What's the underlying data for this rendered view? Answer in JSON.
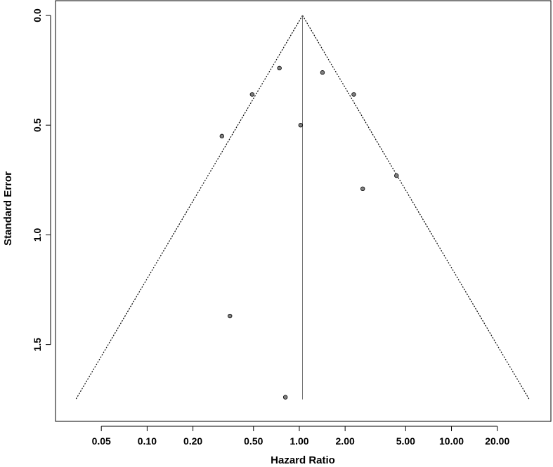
{
  "chart_data": {
    "type": "scatter",
    "title": "",
    "xlabel": "Hazard Ratio",
    "ylabel": "Standard Error",
    "x_scale": "log",
    "y_axis_inverted": true,
    "xlim": [
      0.025,
      45
    ],
    "ylim": [
      0,
      1.85
    ],
    "x_ticks": [
      0.05,
      0.1,
      0.2,
      0.5,
      1,
      2,
      5,
      10,
      20
    ],
    "x_tick_labels": [
      "0.05",
      "0.10",
      "0.20",
      "0.50",
      "1.00",
      "2.00",
      "5.00",
      "10.00",
      "20.00"
    ],
    "y_ticks": [
      0,
      0.5,
      1,
      1.5
    ],
    "y_tick_labels": [
      "0.0",
      "0.5",
      "1.0",
      "1.5"
    ],
    "pooled_estimate": 1.05,
    "funnel_max_se": 1.75,
    "grid": false,
    "legend": "none",
    "points": [
      {
        "x": 0.74,
        "y": 0.24
      },
      {
        "x": 1.42,
        "y": 0.26
      },
      {
        "x": 0.49,
        "y": 0.36
      },
      {
        "x": 2.28,
        "y": 0.36
      },
      {
        "x": 1.02,
        "y": 0.5
      },
      {
        "x": 0.31,
        "y": 0.55
      },
      {
        "x": 4.35,
        "y": 0.73
      },
      {
        "x": 2.61,
        "y": 0.79
      },
      {
        "x": 0.35,
        "y": 1.37
      },
      {
        "x": 0.81,
        "y": 1.74
      }
    ],
    "colors": {
      "point_fill": "#808080",
      "point_stroke": "#000000",
      "lines": "#000000"
    }
  }
}
